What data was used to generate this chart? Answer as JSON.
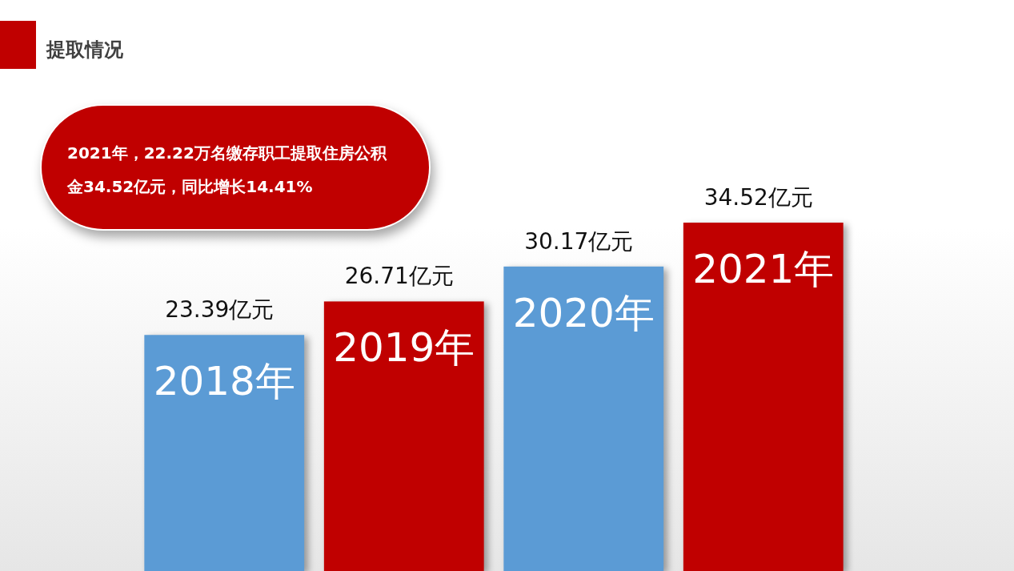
{
  "chart_data": {
    "type": "bar",
    "title": "提取情况",
    "annotations": [
      "2021年，22.22万名缴存职工提取住房公积金34.52亿元，同比增长14.41%"
    ],
    "categories": [
      "2018年",
      "2019年",
      "2020年",
      "2021年"
    ],
    "values": [
      23.39,
      26.71,
      30.17,
      34.52
    ],
    "colors": [
      "#5b9bd5",
      "#c00000",
      "#5b9bd5",
      "#c00000"
    ],
    "value_labels": [
      "23.39亿元",
      "26.71亿元",
      "30.17亿元",
      "34.52亿元"
    ],
    "tick_labels": false
  }
}
